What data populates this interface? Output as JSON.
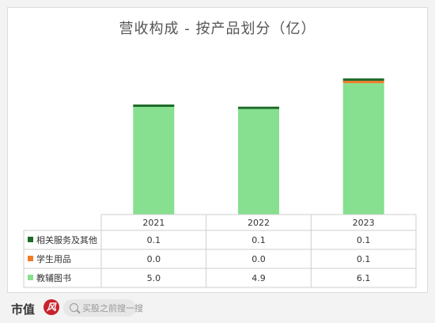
{
  "chart_data": {
    "type": "bar",
    "stacked": true,
    "title": "营收构成 - 按产品划分（亿）",
    "categories": [
      "2021",
      "2022",
      "2023"
    ],
    "series": [
      {
        "name": "教辅图书",
        "values": [
          "5.0",
          "4.9",
          "6.1"
        ],
        "color": "#86e08f"
      },
      {
        "name": "学生用品",
        "values": [
          "0.0",
          "0.0",
          "0.1"
        ],
        "color": "#f07c2a"
      },
      {
        "name": "相关服务及其他",
        "values": [
          "0.1",
          "0.1",
          "0.1"
        ],
        "color": "#1e6b2a"
      }
    ],
    "ylim": [
      0,
      6.6
    ],
    "legend": "table-rows",
    "grid": false
  },
  "footer": {
    "brand": "市值",
    "brand_mark": "风",
    "search_placeholder": "买股之前搜一搜"
  }
}
